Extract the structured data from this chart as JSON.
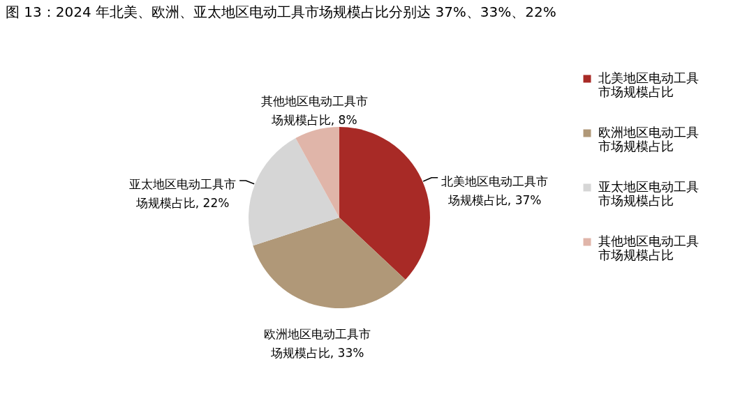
{
  "chart_data": {
    "type": "pie",
    "title": "图 13：2024 年北美、欧洲、亚太地区电动工具市场规模占比分别达 37%、33%、22%",
    "categories": [
      "北美地区电动工具市场规模占比",
      "欧洲地区电动工具市场规模占比",
      "亚太地区电动工具市场规模占比",
      "其他地区电动工具市场规模占比"
    ],
    "values": [
      37,
      33,
      22,
      8
    ],
    "colors": [
      "#a82a26",
      "#b09878",
      "#d6d6d6",
      "#e0b5a9"
    ],
    "value_labels": [
      "北美地区电动工具市场规模占比, 37%",
      "欧洲地区电动工具市场规模占比, 33%",
      "亚太地区电动工具市场规模占比, 22%",
      "其他地区电动工具市场规模占比, 8%"
    ],
    "legend": "right"
  }
}
